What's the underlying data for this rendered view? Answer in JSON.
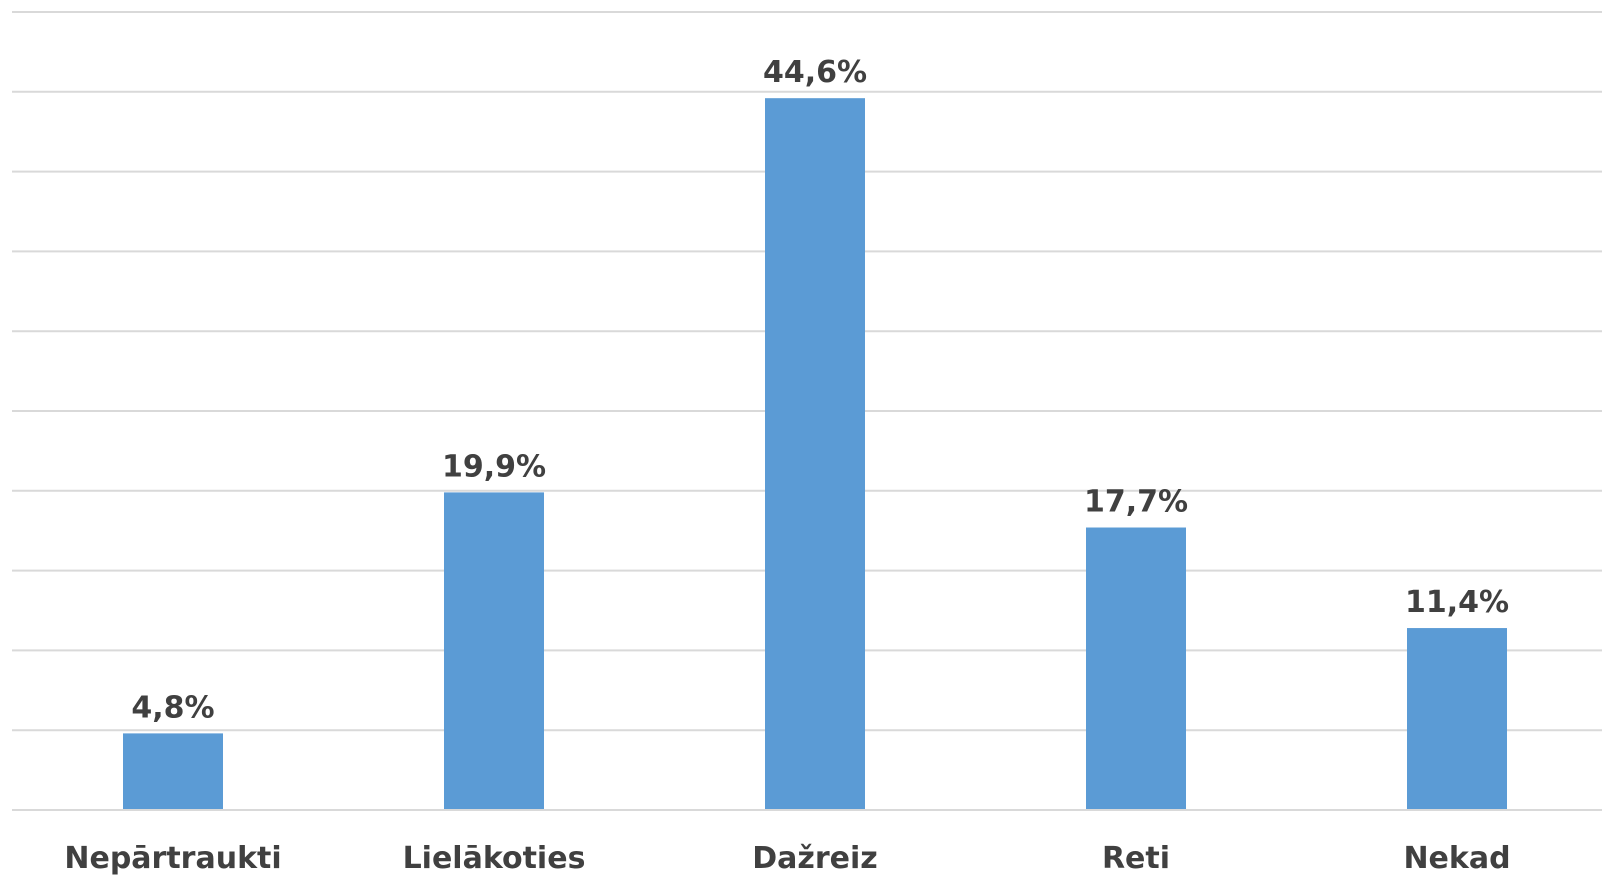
{
  "chart_data": {
    "type": "bar",
    "categories": [
      "Nepārtraukti",
      "Lielākoties",
      "Dažreiz",
      "Reti",
      "Nekad"
    ],
    "values": [
      4.8,
      19.9,
      44.6,
      17.7,
      11.4
    ],
    "data_labels": [
      "4,8%",
      "19,9%",
      "44,6%",
      "17,7%",
      "11,4%"
    ],
    "title": "",
    "xlabel": "",
    "ylabel": "",
    "ylim": [
      0,
      50
    ],
    "grid": true,
    "legend": "none",
    "colors": {
      "bar": "#5b9bd5",
      "grid": "#d9d9d9",
      "text": "#404040"
    }
  }
}
